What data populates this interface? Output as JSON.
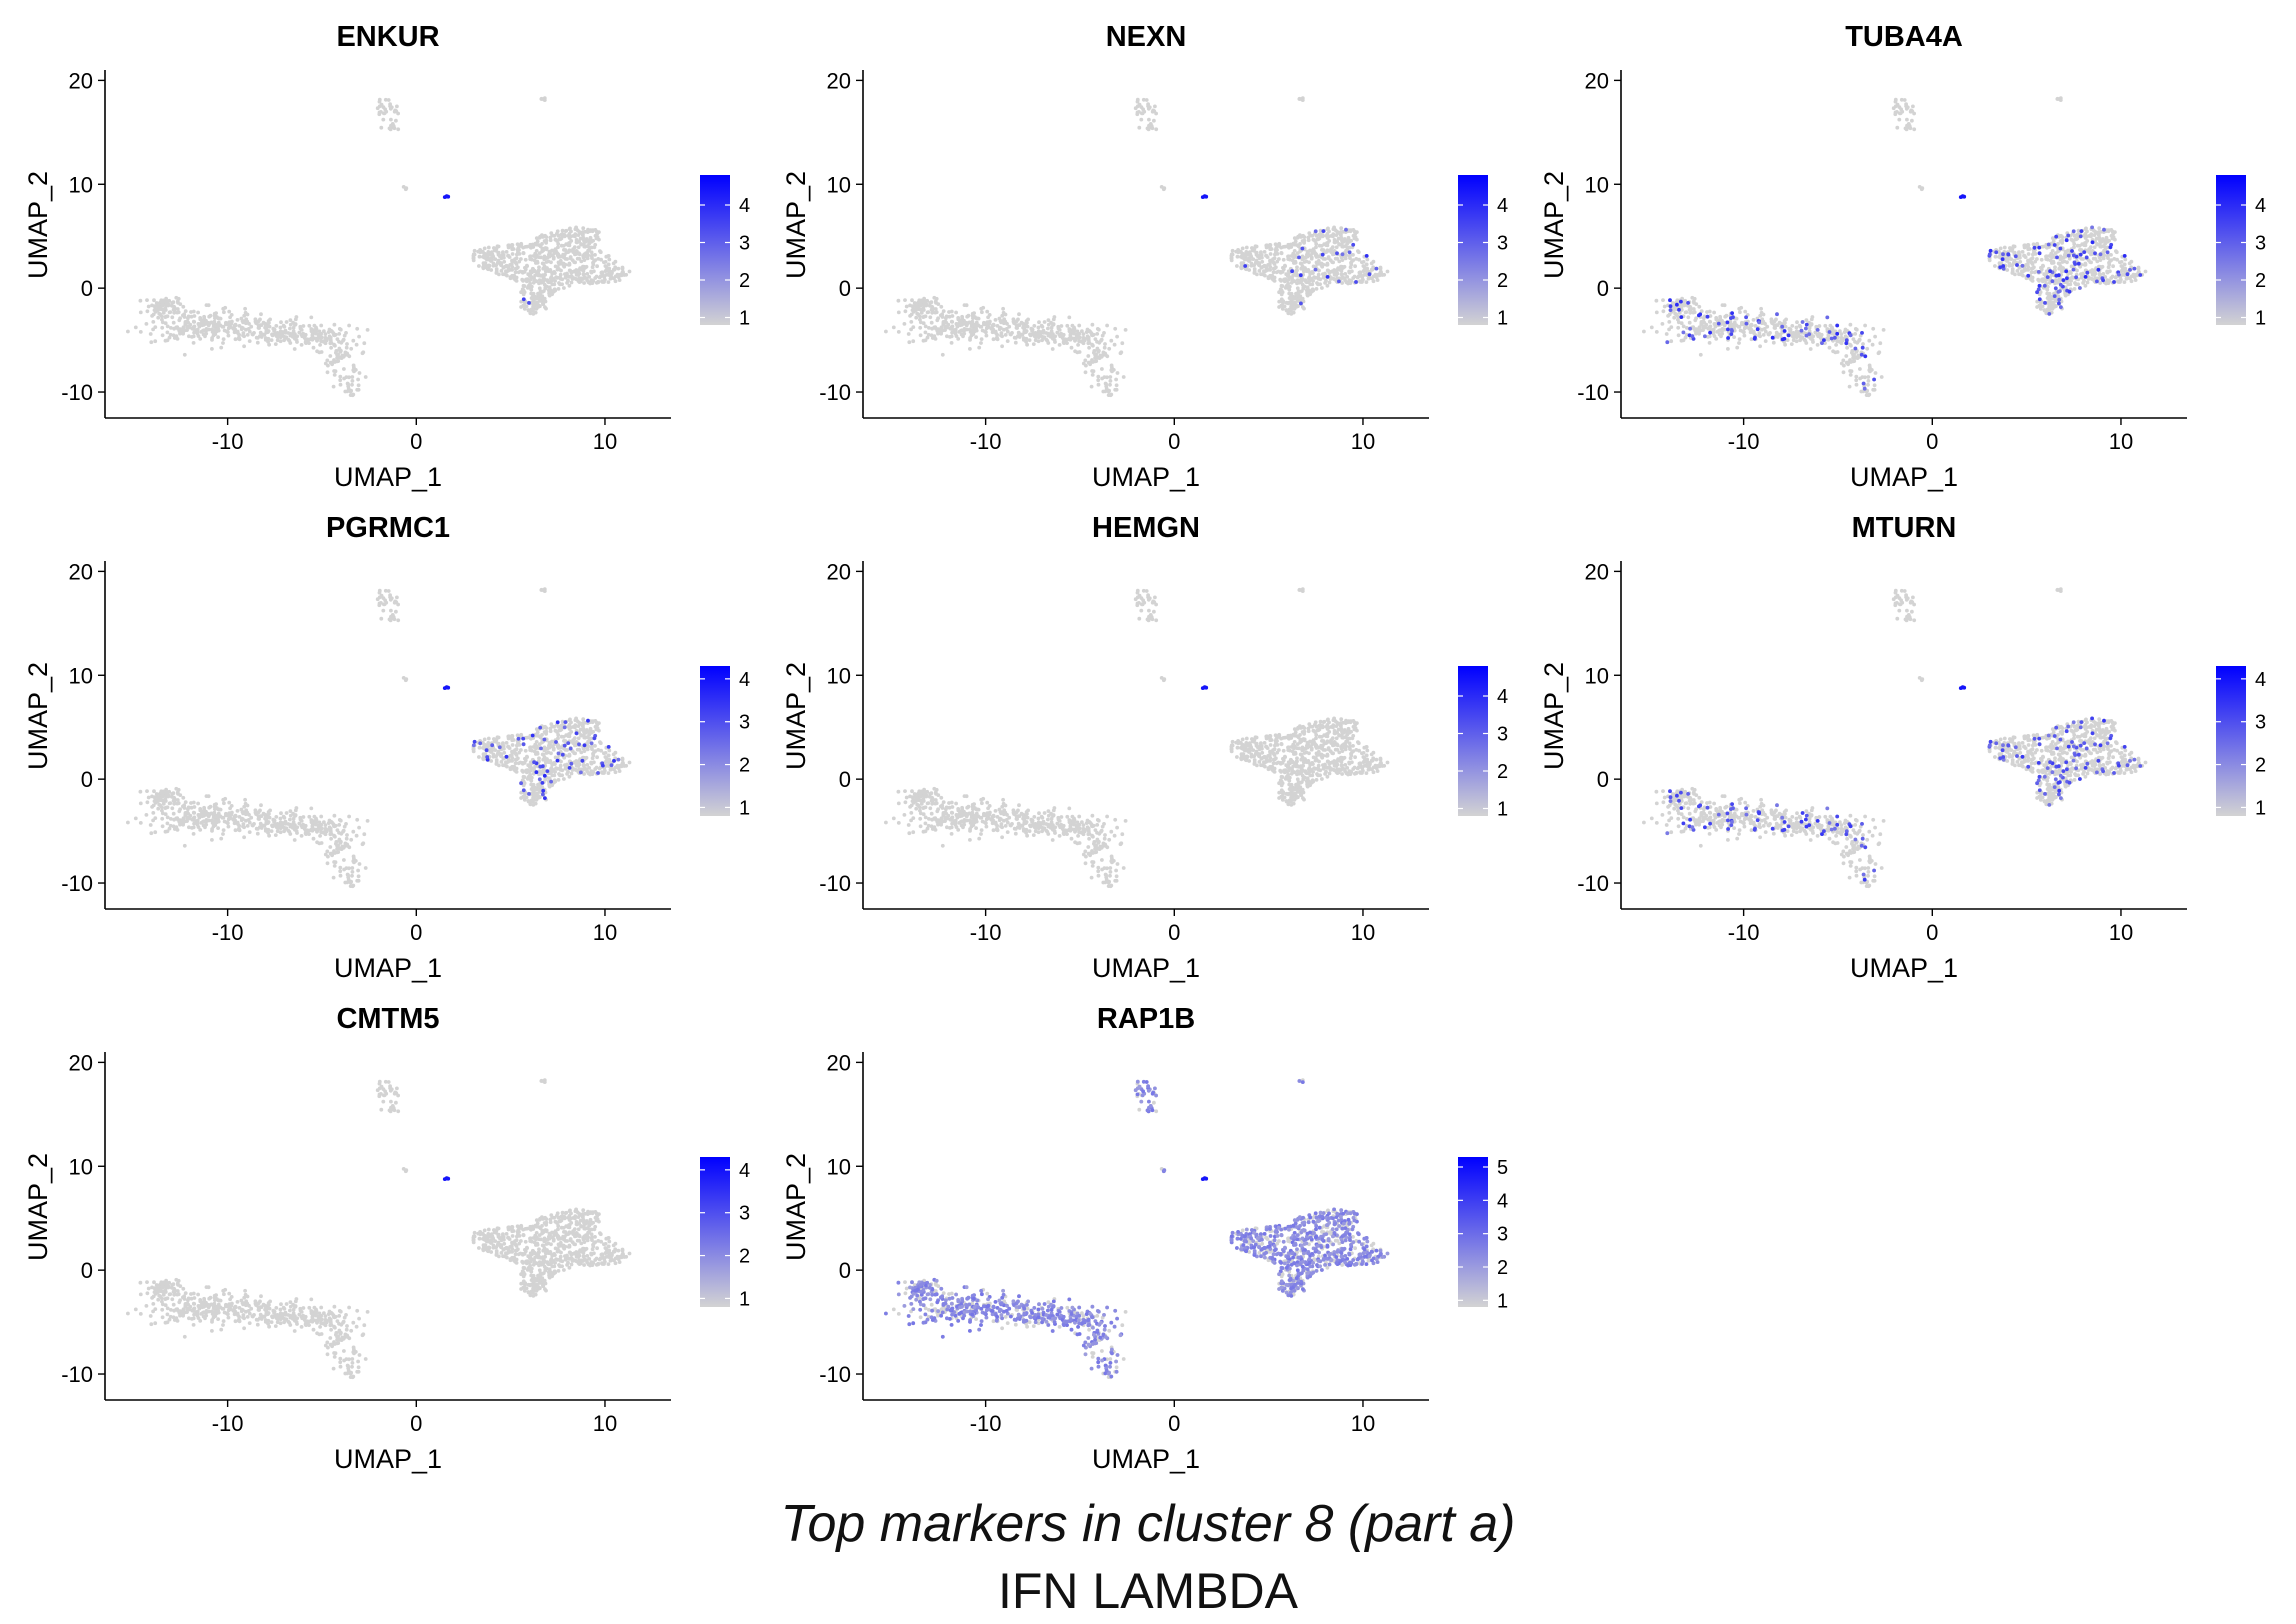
{
  "caption": {
    "title": "Top markers in cluster 8 (part a)",
    "subtitle": "IFN LAMBDA"
  },
  "chart_data": [
    {
      "type": "scatter",
      "title": "ENKUR",
      "xlabel": "UMAP_1",
      "ylabel": "UMAP_2",
      "xlim": [
        -16.5,
        13.5
      ],
      "ylim": [
        -12.5,
        21
      ],
      "xticks": [
        -10,
        0,
        10
      ],
      "yticks": [
        -10,
        0,
        10,
        20
      ],
      "colorbar": {
        "ticks": [
          1,
          2,
          3,
          4
        ],
        "range": [
          0.8,
          4.8
        ],
        "low_color": "#d3d3d3",
        "high_color": "#0000ff"
      },
      "expressing_cells": {
        "relative_level": 0.05,
        "intensity": 0.85,
        "regions": [
          "small-cluster-dot",
          "bottom-tip-right-cluster"
        ]
      },
      "grid": false,
      "legend": "right"
    },
    {
      "type": "scatter",
      "title": "NEXN",
      "xlabel": "UMAP_1",
      "ylabel": "UMAP_2",
      "xlim": [
        -16.5,
        13.5
      ],
      "ylim": [
        -12.5,
        21
      ],
      "xticks": [
        -10,
        0,
        10
      ],
      "yticks": [
        -10,
        0,
        10,
        20
      ],
      "colorbar": {
        "ticks": [
          1,
          2,
          3,
          4
        ],
        "range": [
          0.8,
          4.8
        ],
        "low_color": "#d3d3d3",
        "high_color": "#0000ff"
      },
      "expressing_cells": {
        "relative_level": 0.03,
        "intensity": 0.8,
        "regions": [
          "small-cluster-dot",
          "right-cluster"
        ]
      },
      "grid": false,
      "legend": "right"
    },
    {
      "type": "scatter",
      "title": "TUBA4A",
      "xlabel": "UMAP_1",
      "ylabel": "UMAP_2",
      "xlim": [
        -16.5,
        13.5
      ],
      "ylim": [
        -12.5,
        21
      ],
      "xticks": [
        -10,
        0,
        10
      ],
      "yticks": [
        -10,
        0,
        10,
        20
      ],
      "colorbar": {
        "ticks": [
          1,
          2,
          3,
          4
        ],
        "range": [
          0.8,
          4.8
        ],
        "low_color": "#d3d3d3",
        "high_color": "#0000ff"
      },
      "expressing_cells": {
        "relative_level": 0.12,
        "intensity": 0.8,
        "regions": [
          "small-cluster-dot",
          "right-cluster",
          "bottom-tip-right-cluster",
          "left-cluster"
        ]
      },
      "grid": false,
      "legend": "right"
    },
    {
      "type": "scatter",
      "title": "PGRMC1",
      "xlabel": "UMAP_1",
      "ylabel": "UMAP_2",
      "xlim": [
        -16.5,
        13.5
      ],
      "ylim": [
        -12.5,
        21
      ],
      "xticks": [
        -10,
        0,
        10
      ],
      "yticks": [
        -10,
        0,
        10,
        20
      ],
      "colorbar": {
        "ticks": [
          1,
          2,
          3,
          4
        ],
        "range": [
          0.8,
          4.3
        ],
        "low_color": "#d3d3d3",
        "high_color": "#0000ff"
      },
      "expressing_cells": {
        "relative_level": 0.08,
        "intensity": 0.8,
        "regions": [
          "small-cluster-dot",
          "right-cluster",
          "bottom-tip-right-cluster"
        ]
      },
      "grid": false,
      "legend": "right"
    },
    {
      "type": "scatter",
      "title": "HEMGN",
      "xlabel": "UMAP_1",
      "ylabel": "UMAP_2",
      "xlim": [
        -16.5,
        13.5
      ],
      "ylim": [
        -12.5,
        21
      ],
      "xticks": [
        -10,
        0,
        10
      ],
      "yticks": [
        -10,
        0,
        10,
        20
      ],
      "colorbar": {
        "ticks": [
          1,
          2,
          3,
          4
        ],
        "range": [
          0.8,
          4.8
        ],
        "low_color": "#d3d3d3",
        "high_color": "#0000ff"
      },
      "expressing_cells": {
        "relative_level": 0.03,
        "intensity": 0.8,
        "regions": [
          "small-cluster-dot"
        ]
      },
      "grid": false,
      "legend": "right"
    },
    {
      "type": "scatter",
      "title": "MTURN",
      "xlabel": "UMAP_1",
      "ylabel": "UMAP_2",
      "xlim": [
        -16.5,
        13.5
      ],
      "ylim": [
        -12.5,
        21
      ],
      "xticks": [
        -10,
        0,
        10
      ],
      "yticks": [
        -10,
        0,
        10,
        20
      ],
      "colorbar": {
        "ticks": [
          1,
          2,
          3,
          4
        ],
        "range": [
          0.8,
          4.3
        ],
        "low_color": "#d3d3d3",
        "high_color": "#0000ff"
      },
      "expressing_cells": {
        "relative_level": 0.12,
        "intensity": 0.75,
        "regions": [
          "small-cluster-dot",
          "right-cluster",
          "bottom-tip-right-cluster",
          "left-cluster"
        ]
      },
      "grid": false,
      "legend": "right"
    },
    {
      "type": "scatter",
      "title": "CMTM5",
      "xlabel": "UMAP_1",
      "ylabel": "UMAP_2",
      "xlim": [
        -16.5,
        13.5
      ],
      "ylim": [
        -12.5,
        21
      ],
      "xticks": [
        -10,
        0,
        10
      ],
      "yticks": [
        -10,
        0,
        10,
        20
      ],
      "colorbar": {
        "ticks": [
          1,
          2,
          3,
          4
        ],
        "range": [
          0.8,
          4.3
        ],
        "low_color": "#d3d3d3",
        "high_color": "#0000ff"
      },
      "expressing_cells": {
        "relative_level": 0.02,
        "intensity": 0.8,
        "regions": [
          "small-cluster-dot"
        ]
      },
      "grid": false,
      "legend": "right"
    },
    {
      "type": "scatter",
      "title": "RAP1B",
      "xlabel": "UMAP_1",
      "ylabel": "UMAP_2",
      "xlim": [
        -16.5,
        13.5
      ],
      "ylim": [
        -12.5,
        21
      ],
      "xticks": [
        -10,
        0,
        10
      ],
      "yticks": [
        -10,
        0,
        10,
        20
      ],
      "colorbar": {
        "ticks": [
          1,
          2,
          3,
          4,
          5
        ],
        "range": [
          0.8,
          5.3
        ],
        "low_color": "#d3d3d3",
        "high_color": "#0000ff"
      },
      "expressing_cells": {
        "relative_level": 0.7,
        "intensity": 0.45,
        "regions": [
          "small-cluster-dot",
          "right-cluster",
          "bottom-tip-right-cluster",
          "left-cluster",
          "top-clusters"
        ]
      },
      "grid": false,
      "legend": "right"
    }
  ]
}
